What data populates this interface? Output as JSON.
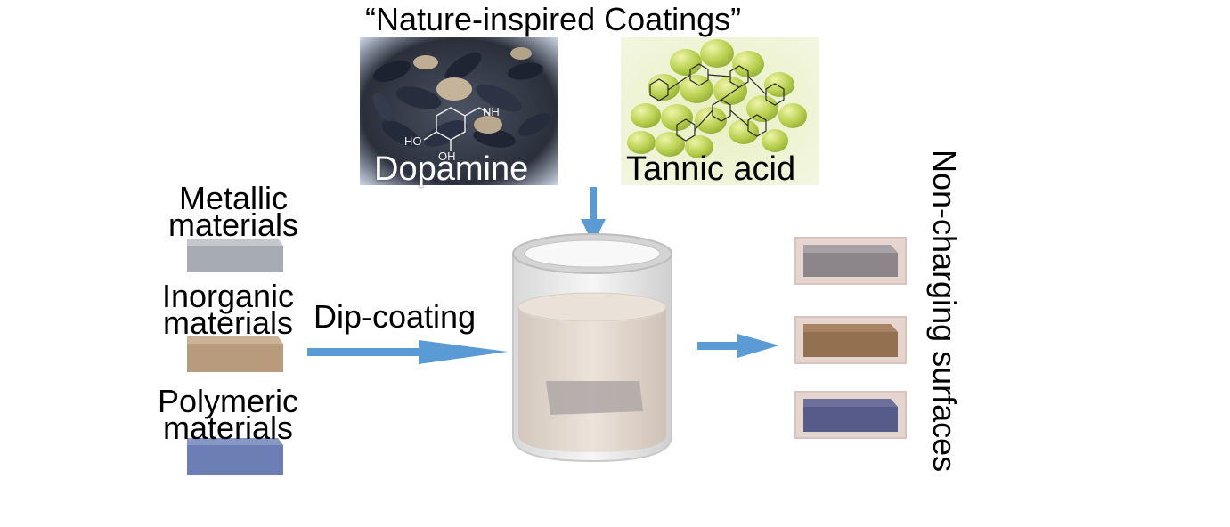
{
  "title": "“Nature-inspired Coatings”",
  "photos": {
    "dopamine_label": "Dopamine",
    "tannic_label": "Tannic acid",
    "molecule_text": {
      "nh2": "NH",
      "ho": "HO",
      "oh": "OH"
    }
  },
  "materials": [
    {
      "label": "Metallic materials",
      "color": "#a7abb3"
    },
    {
      "label": "Inorganic materials",
      "color": "#b89a7c"
    },
    {
      "label": "Polymeric materials",
      "color": "#6b7fb5"
    }
  ],
  "process_label": "Dip-coating",
  "result_label": "Non-charging surfaces",
  "colors": {
    "arrow": "#5b9bd5",
    "coating_border": "#d9c3bd"
  }
}
